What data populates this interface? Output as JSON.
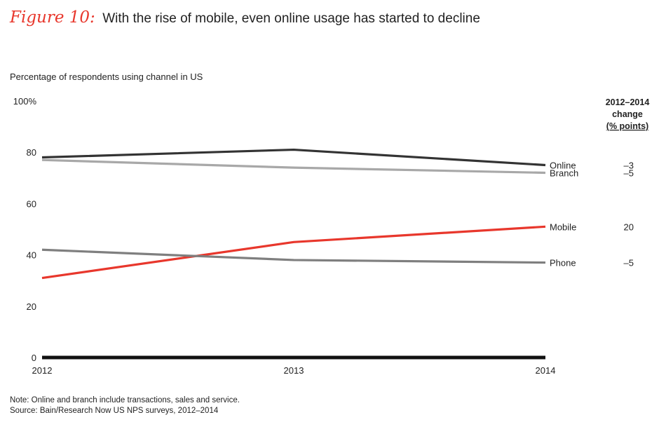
{
  "figure": {
    "label": "Figure 10:",
    "title": "With the rise of mobile, even online usage has started to decline"
  },
  "subtitle": "Percentage of respondents using channel in US",
  "change_header": {
    "line1": "2012–2014",
    "line2": "change",
    "line3": "(% points)"
  },
  "notes": {
    "note": "Note: Online and branch include transactions, sales and service.",
    "source": "Source: Bain/Research Now US NPS surveys, 2012–2014"
  },
  "chart_data": {
    "type": "line",
    "title": "With the rise of mobile, even online usage has started to decline",
    "ylabel": "Percentage of respondents using channel in US",
    "xlabel": "",
    "x": [
      "2012",
      "2013",
      "2014"
    ],
    "ylim": [
      0,
      100
    ],
    "yticks": [
      0,
      20,
      40,
      60,
      80,
      100
    ],
    "ytick_labels": [
      "0",
      "20",
      "40",
      "60",
      "80",
      "100%"
    ],
    "grid": false,
    "series": [
      {
        "name": "Online",
        "values": [
          78,
          81,
          75
        ],
        "change": "–3",
        "color": "#333333"
      },
      {
        "name": "Branch",
        "values": [
          77,
          74,
          72
        ],
        "change": "–5",
        "color": "#a8a8a8"
      },
      {
        "name": "Mobile",
        "values": [
          31,
          45,
          51
        ],
        "change": "20",
        "color": "#e8372c"
      },
      {
        "name": "Phone",
        "values": [
          42,
          38,
          37
        ],
        "change": "–5",
        "color": "#7f7f7f"
      }
    ]
  }
}
